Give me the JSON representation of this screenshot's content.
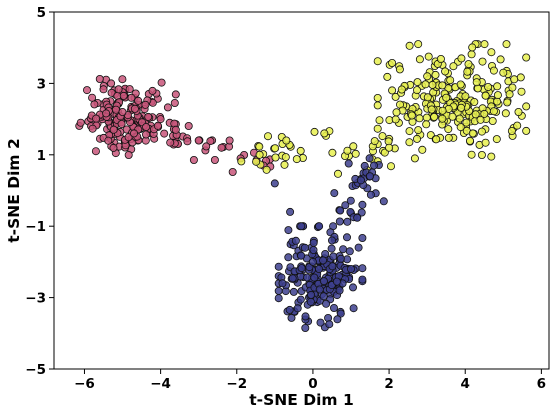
{
  "chart_data": {
    "type": "scatter",
    "title": "",
    "xlabel": "t-SNE Dim 1",
    "ylabel": "t-SNE Dim 2",
    "xlim": [
      -6.8,
      6.2
    ],
    "ylim": [
      -5,
      5
    ],
    "xticks": [
      -6,
      -4,
      -2,
      0,
      2,
      4,
      6
    ],
    "yticks": [
      -5,
      -3,
      -1,
      1,
      3,
      5
    ],
    "xtick_labels": [
      "−6",
      "−4",
      "−2",
      "0",
      "2",
      "4",
      "6"
    ],
    "ytick_labels": [
      "−5",
      "−3",
      "−1",
      "1",
      "3",
      "5"
    ],
    "grid": false,
    "legend": "none",
    "clusters": [
      {
        "color": "#c8567a",
        "approx_points": 210,
        "core": {
          "x": [
            -6.2,
            -3.6
          ],
          "y": [
            0.9,
            3.2
          ]
        },
        "tail": {
          "from": [
            -4.0,
            1.6
          ],
          "to": [
            -1.2,
            0.7
          ]
        },
        "sample_points": [
          [
            -6.1,
            1.9
          ],
          [
            -5.8,
            2.6
          ],
          [
            -5.3,
            3.0
          ],
          [
            -5.0,
            2.2
          ],
          [
            -4.7,
            1.6
          ],
          [
            -4.4,
            2.4
          ],
          [
            -4.0,
            2.0
          ],
          [
            -3.6,
            1.7
          ],
          [
            -3.0,
            1.4
          ],
          [
            -2.4,
            1.2
          ],
          [
            -1.9,
            0.9
          ],
          [
            -1.3,
            0.7
          ]
        ]
      },
      {
        "color": "#e8f050",
        "approx_points": 280,
        "core": {
          "x": [
            1.7,
            5.6
          ],
          "y": [
            0.9,
            4.1
          ]
        },
        "tail": {
          "from": [
            2.0,
            1.1
          ],
          "to": [
            -1.5,
            1.0
          ]
        },
        "sample_points": [
          [
            2.0,
            1.2
          ],
          [
            2.6,
            2.1
          ],
          [
            3.0,
            3.2
          ],
          [
            3.5,
            2.6
          ],
          [
            3.9,
            3.7
          ],
          [
            4.2,
            1.6
          ],
          [
            4.6,
            2.9
          ],
          [
            5.0,
            3.3
          ],
          [
            5.4,
            2.2
          ],
          [
            0.3,
            1.6
          ],
          [
            -0.7,
            1.4
          ],
          [
            -1.4,
            1.0
          ]
        ]
      },
      {
        "color": "#3d3f8e",
        "approx_points": 240,
        "core": {
          "x": [
            -0.9,
            1.3
          ],
          "y": [
            -3.9,
            -1.0
          ]
        },
        "tail": {
          "from": [
            0.8,
            -1.0
          ],
          "to": [
            1.5,
            0.7
          ]
        },
        "sample_points": [
          [
            -0.8,
            -2.6
          ],
          [
            -0.4,
            -3.3
          ],
          [
            0.0,
            -2.0
          ],
          [
            0.2,
            -3.7
          ],
          [
            0.5,
            -1.4
          ],
          [
            0.7,
            -2.8
          ],
          [
            1.0,
            -2.2
          ],
          [
            1.2,
            -1.6
          ],
          [
            1.3,
            -0.4
          ],
          [
            1.5,
            0.4
          ],
          [
            -1.0,
            0.2
          ],
          [
            -0.6,
            -0.6
          ]
        ]
      }
    ]
  }
}
